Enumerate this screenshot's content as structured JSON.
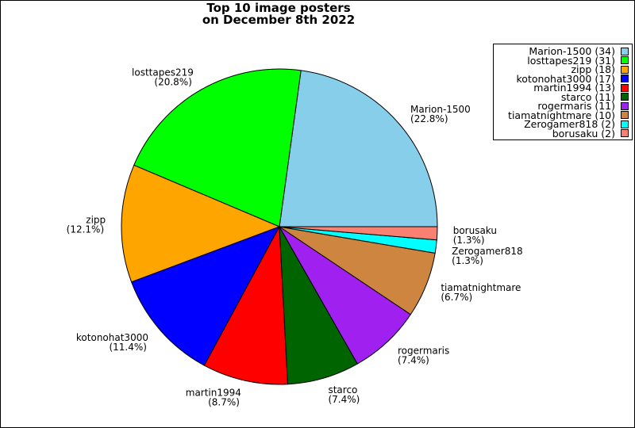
{
  "chart_data": {
    "type": "pie",
    "title": [
      "Top 10 image posters",
      "on December 8th 2022"
    ],
    "start_angle_deg": 0,
    "direction": "counterclockwise",
    "legend_position": "top-right",
    "slices": [
      {
        "label": "Marion-1500",
        "value": 34,
        "percent": "22.8%",
        "color": "#87CEEB"
      },
      {
        "label": "losttapes219",
        "value": 31,
        "percent": "20.8%",
        "color": "#00FF00"
      },
      {
        "label": "zipp",
        "value": 18,
        "percent": "12.1%",
        "color": "#FFA500"
      },
      {
        "label": "kotonohat3000",
        "value": 17,
        "percent": "11.4%",
        "color": "#0000FF"
      },
      {
        "label": "martin1994",
        "value": 13,
        "percent": "8.7%",
        "color": "#FF0000"
      },
      {
        "label": "starco",
        "value": 11,
        "percent": "7.4%",
        "color": "#006400"
      },
      {
        "label": "rogermaris",
        "value": 11,
        "percent": "7.4%",
        "color": "#A020F0"
      },
      {
        "label": "tiamatnightmare",
        "value": 10,
        "percent": "6.7%",
        "color": "#CD853F"
      },
      {
        "label": "Zerogamer818",
        "value": 2,
        "percent": "1.3%",
        "color": "#00FFFF"
      },
      {
        "label": "borusaku",
        "value": 2,
        "percent": "1.3%",
        "color": "#FA8072"
      }
    ]
  }
}
